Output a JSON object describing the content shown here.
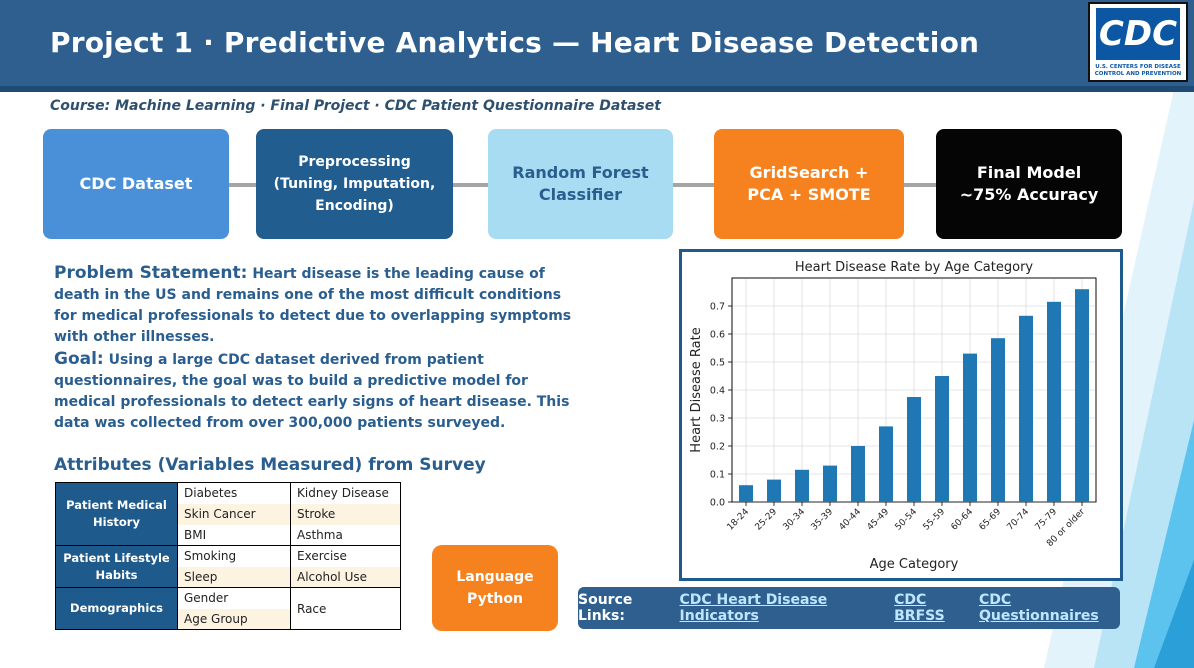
{
  "header": {
    "title": "Project 1  ·  Predictive Analytics — Heart Disease Detection",
    "logo_text": "CDC",
    "logo_subtext": "U.S. CENTERS FOR DISEASE CONTROL AND PREVENTION",
    "bg_color": "#2e5f8f"
  },
  "course": "Course: Machine Learning  ·  Final Project  ·  CDC Patient Questionnaire Dataset",
  "pipeline": [
    {
      "label": "CDC Dataset",
      "bg": "#4a90d9",
      "color": "#ffffff"
    },
    {
      "label": "Preprocessing\n(Tuning, Imputation,\nEncoding)",
      "bg": "#215d8f",
      "color": "#ffffff"
    },
    {
      "label": "Random Forest\nClassifier",
      "bg": "#a8dcf2",
      "color": "#2a5e8f"
    },
    {
      "label": "GridSearch +\nPCA + SMOTE",
      "bg": "#f5821f",
      "color": "#ffffff"
    },
    {
      "label": "Final Model\n~75% Accuracy",
      "bg": "#050505",
      "color": "#ffffff"
    }
  ],
  "problem": {
    "lead": "Problem Statement:",
    "text": "Heart disease is the leading cause of death in the US and remains one of the most difficult conditions for medical professionals to detect due to overlapping symptoms with other illnesses."
  },
  "goal": {
    "lead": "Goal:",
    "text": "Using a large CDC dataset derived from patient questionnaires, the goal was to build a predictive model for medical professionals to detect early signs of heart disease. This data was collected from over 300,000 patients surveyed."
  },
  "attributes": {
    "title": "Attributes (Variables Measured) from Survey",
    "groups": [
      {
        "category": "Patient Medical History",
        "col1": [
          "Diabetes",
          "Skin Cancer",
          "BMI"
        ],
        "col2": [
          "Kidney Disease",
          "Stroke",
          "Asthma"
        ]
      },
      {
        "category": "Patient Lifestyle Habits",
        "col1": [
          "Smoking",
          "Sleep"
        ],
        "col2": [
          "Exercise",
          "Alcohol Use"
        ]
      },
      {
        "category": "Demographics",
        "col1": [
          "Gender",
          "Age Group"
        ],
        "col2": [
          "Race"
        ]
      }
    ]
  },
  "language": {
    "line1": "Language",
    "line2": "Python"
  },
  "links": {
    "label": "Source Links:",
    "items": [
      "CDC Heart Disease Indicators",
      "CDC BRFSS",
      "CDC Questionnaires"
    ]
  },
  "chart_data": {
    "type": "bar",
    "title": "Heart Disease Rate by Age Category",
    "xlabel": "Age Category",
    "ylabel": "Heart Disease Rate",
    "categories": [
      "18-24",
      "25-29",
      "30-34",
      "35-39",
      "40-44",
      "45-49",
      "50-54",
      "55-59",
      "60-64",
      "65-69",
      "70-74",
      "75-79",
      "80 or older"
    ],
    "values": [
      0.06,
      0.08,
      0.115,
      0.13,
      0.2,
      0.27,
      0.375,
      0.45,
      0.53,
      0.585,
      0.665,
      0.715,
      0.76
    ],
    "yticks": [
      "0.0",
      "0.1",
      "0.2",
      "0.3",
      "0.4",
      "0.5",
      "0.6",
      "0.7"
    ],
    "ylim": [
      0,
      0.8
    ],
    "grid": true,
    "bar_color": "#1f77b4"
  }
}
